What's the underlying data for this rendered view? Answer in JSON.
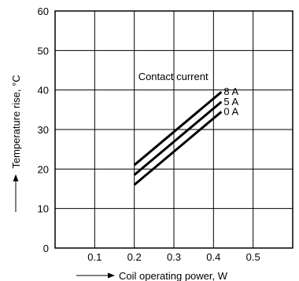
{
  "chart_data": {
    "type": "line",
    "xlabel": "Coil operating power, W",
    "ylabel": "Temperature rise, °C",
    "xlim": [
      0,
      0.6
    ],
    "ylim": [
      0,
      60
    ],
    "x_ticks": [
      0.1,
      0.2,
      0.3,
      0.4,
      0.5
    ],
    "y_ticks": [
      0,
      10,
      20,
      30,
      40,
      50,
      60
    ],
    "x_tick_labels": [
      "0.1",
      "0.2",
      "0.3",
      "0.4",
      "0.5"
    ],
    "y_tick_labels": [
      "0",
      "10",
      "20",
      "30",
      "40",
      "50",
      "60"
    ],
    "grid": true,
    "legend_title": "Contact current",
    "series": [
      {
        "name": "8 A",
        "x": [
          0.2,
          0.42
        ],
        "y": [
          21,
          39.5
        ]
      },
      {
        "name": "5 A",
        "x": [
          0.2,
          0.42
        ],
        "y": [
          18.5,
          37
        ]
      },
      {
        "name": "0 A",
        "x": [
          0.2,
          0.42
        ],
        "y": [
          16,
          34.5
        ]
      }
    ]
  }
}
